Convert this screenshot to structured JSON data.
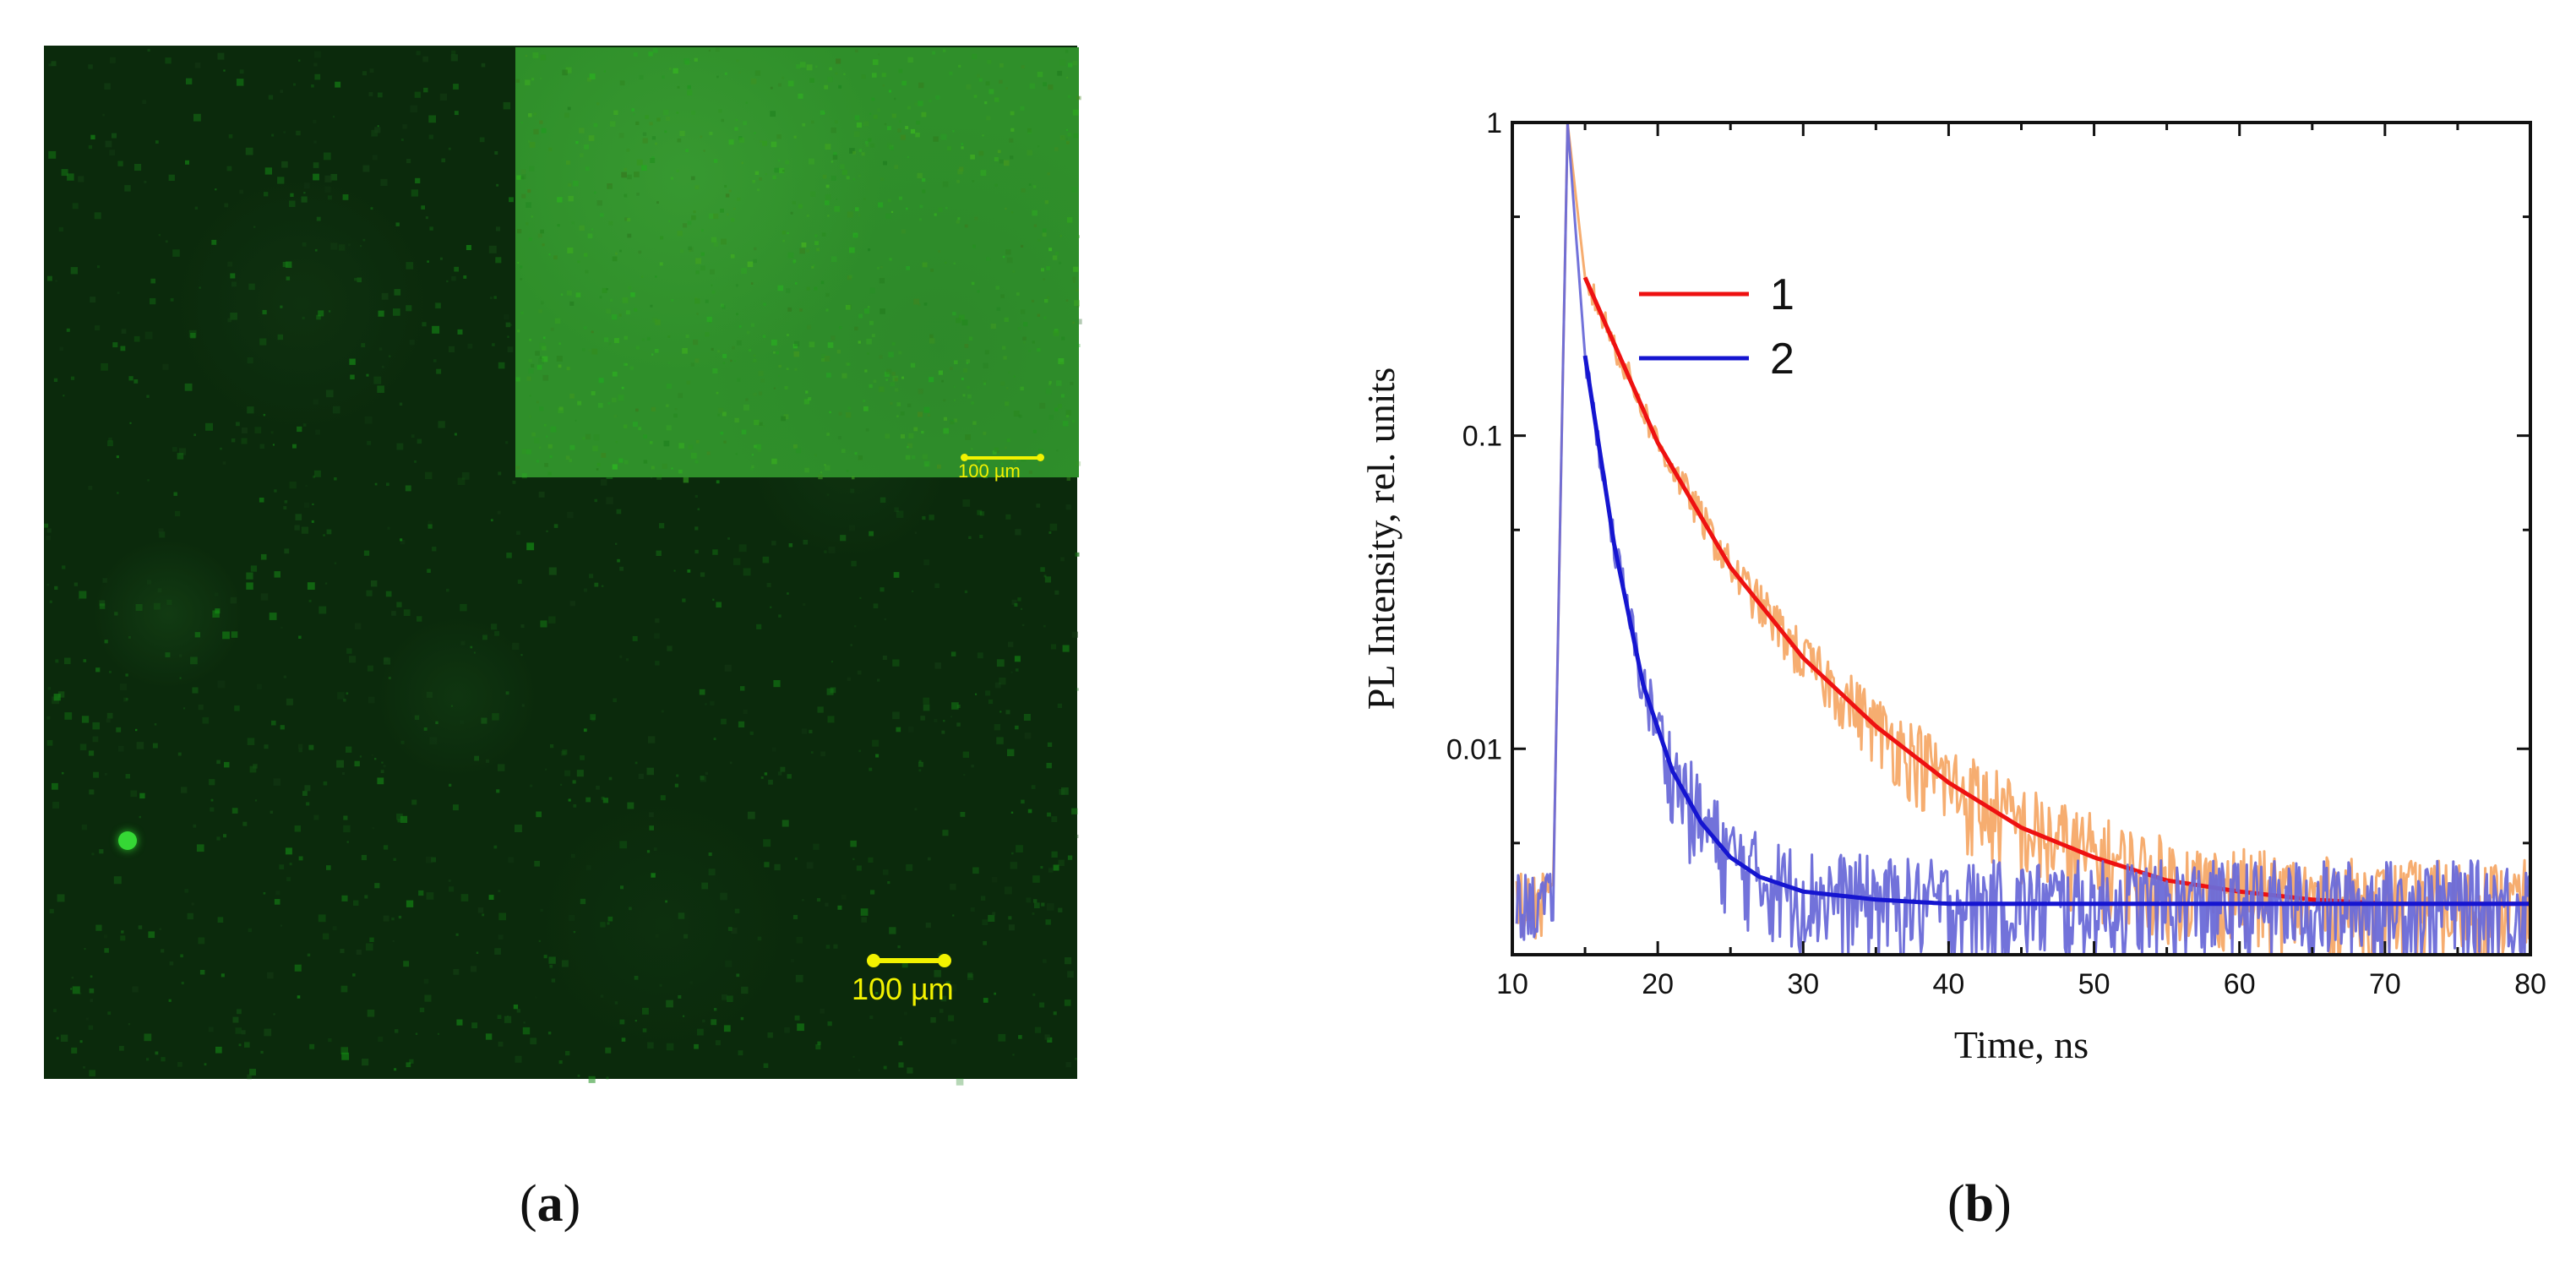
{
  "panels": {
    "a": {
      "label_open": "(",
      "label_letter": "a",
      "label_close": ")"
    },
    "b": {
      "label_open": "(",
      "label_letter": "b",
      "label_close": ")"
    }
  },
  "micrograph": {
    "main_scalebar_label": "100 µm",
    "inset_scalebar_label": "100 µm",
    "background_color": "#0b2a0c",
    "inset_color": "#2f8f2a",
    "scalebar_color": "#f2f200"
  },
  "chart_data": {
    "type": "line",
    "xlabel": "Time, ns",
    "ylabel": "PL Intensity, rel. units",
    "xlim": [
      10,
      80
    ],
    "ylim": [
      0.0022,
      1.0
    ],
    "yscale": "log",
    "x_ticks": [
      10,
      20,
      30,
      40,
      50,
      60,
      70,
      80
    ],
    "x_tick_labels": [
      "10",
      "20",
      "30",
      "40",
      "50",
      "60",
      "70",
      "80"
    ],
    "y_ticks": [
      1,
      0.1,
      0.01
    ],
    "y_tick_labels": [
      "1",
      "0.1",
      "0.01"
    ],
    "legend_position": "top-left",
    "series": [
      {
        "name": "1",
        "fit_color": "#ee1111",
        "data_color": "#f5a968",
        "baseline": 0.0032,
        "rise_start": 12.8,
        "peak_x": 13.8,
        "fit": {
          "start_x": 15.0,
          "x": [
            15,
            20,
            25,
            30,
            35,
            40,
            45,
            50,
            55,
            60,
            65,
            70,
            75,
            80
          ],
          "y": [
            0.32,
            0.095,
            0.038,
            0.0195,
            0.0118,
            0.0078,
            0.0056,
            0.0045,
            0.0038,
            0.0035,
            0.0033,
            0.0032,
            0.0032,
            0.0032
          ]
        }
      },
      {
        "name": "2",
        "fit_color": "#1515d0",
        "data_color": "#6a6ad8",
        "baseline": 0.0032,
        "rise_start": 12.8,
        "peak_x": 13.8,
        "fit": {
          "start_x": 15.0,
          "x": [
            15,
            17,
            19,
            21,
            23,
            25,
            27,
            30,
            35,
            40,
            50,
            60,
            70,
            80
          ],
          "y": [
            0.18,
            0.045,
            0.016,
            0.0085,
            0.0058,
            0.0045,
            0.0039,
            0.0035,
            0.0033,
            0.0032,
            0.0032,
            0.0032,
            0.0032,
            0.0032
          ]
        }
      }
    ]
  }
}
